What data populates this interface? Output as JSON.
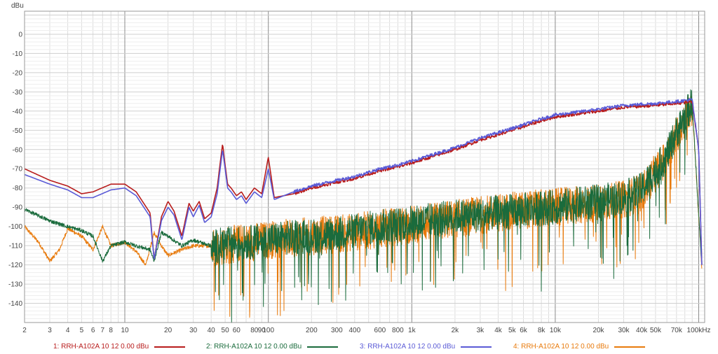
{
  "chart_data": {
    "type": "line",
    "ylabel": "dBu",
    "x_scale": "log",
    "xlim": [
      2,
      110000
    ],
    "ylim": [
      -150,
      12
    ],
    "x_ticks": [
      {
        "v": 2,
        "label": "2"
      },
      {
        "v": 3,
        "label": "3"
      },
      {
        "v": 4,
        "label": "4"
      },
      {
        "v": 5,
        "label": "5"
      },
      {
        "v": 6,
        "label": "6"
      },
      {
        "v": 7,
        "label": "7"
      },
      {
        "v": 8,
        "label": "8"
      },
      {
        "v": 10,
        "label": "10"
      },
      {
        "v": 20,
        "label": "20"
      },
      {
        "v": 30,
        "label": "30"
      },
      {
        "v": 40,
        "label": "40"
      },
      {
        "v": 50,
        "label": "50"
      },
      {
        "v": 60,
        "label": "60"
      },
      {
        "v": 80,
        "label": "80"
      },
      {
        "v": 90,
        "label": "90"
      },
      {
        "v": 100,
        "label": "100"
      },
      {
        "v": 200,
        "label": "200"
      },
      {
        "v": 300,
        "label": "300"
      },
      {
        "v": 400,
        "label": "400"
      },
      {
        "v": 600,
        "label": "600"
      },
      {
        "v": 800,
        "label": "800"
      },
      {
        "v": 1000,
        "label": "1k"
      },
      {
        "v": 2000,
        "label": "2k"
      },
      {
        "v": 3000,
        "label": "3k"
      },
      {
        "v": 4000,
        "label": "4k"
      },
      {
        "v": 5000,
        "label": "5k"
      },
      {
        "v": 6000,
        "label": "6k"
      },
      {
        "v": 8000,
        "label": "8k"
      },
      {
        "v": 10000,
        "label": "10k"
      },
      {
        "v": 20000,
        "label": "20k"
      },
      {
        "v": 30000,
        "label": "30k"
      },
      {
        "v": 40000,
        "label": "40k"
      },
      {
        "v": 50000,
        "label": "50k"
      },
      {
        "v": 70000,
        "label": "70k"
      },
      {
        "v": 100000,
        "label": "100kHz"
      }
    ],
    "y_ticks": [
      0,
      -10,
      -20,
      -30,
      -40,
      -50,
      -60,
      -70,
      -80,
      -90,
      -100,
      -110,
      -120,
      -130,
      -140
    ],
    "grid": true,
    "legend_position": "bottom",
    "series": [
      {
        "name": "1: RRH-A102A 10 12 0.00 dBu",
        "color": "#b81c1c",
        "noise": 0,
        "x": [
          2,
          3,
          4,
          5,
          6,
          8,
          10,
          12,
          15,
          16,
          18,
          20,
          22,
          25,
          28,
          30,
          33,
          36,
          40,
          44,
          48,
          50,
          52,
          55,
          60,
          65,
          70,
          80,
          90,
          100,
          110,
          150,
          200,
          300,
          400,
          600,
          800,
          1000,
          2000,
          3000,
          5000,
          8000,
          10000,
          20000,
          30000,
          50000,
          70000,
          90000,
          100000,
          105000
        ],
        "y": [
          -70,
          -76,
          -79,
          -83,
          -82,
          -78,
          -78,
          -82,
          -93,
          -117,
          -95,
          -87,
          -92,
          -105,
          -88,
          -92,
          -87,
          -96,
          -93,
          -80,
          -57,
          -68,
          -78,
          -80,
          -84,
          -82,
          -86,
          -80,
          -83,
          -64,
          -85,
          -83,
          -80,
          -77,
          -75,
          -71,
          -69,
          -67,
          -60,
          -55,
          -50,
          -45,
          -43,
          -40,
          -38,
          -37,
          -36,
          -35,
          -60,
          -120
        ]
      },
      {
        "name": "2: RRH-A102A 10 12 0.00 dBu",
        "color": "#1a6b3c",
        "noise": 18,
        "x": [
          2,
          3,
          4,
          5,
          6,
          7,
          8,
          10,
          12,
          15,
          16,
          18,
          20,
          25,
          30,
          40,
          50,
          60,
          80,
          100,
          200,
          300,
          500,
          1000,
          2000,
          3000,
          5000,
          10000,
          20000,
          30000,
          40000,
          50000,
          60000,
          70000,
          80000,
          90000,
          100000,
          105000
        ],
        "y": [
          -91,
          -97,
          -100,
          -102,
          -105,
          -118,
          -110,
          -108,
          -110,
          -112,
          -118,
          -103,
          -105,
          -110,
          -107,
          -110,
          -108,
          -108,
          -107,
          -106,
          -104,
          -103,
          -100,
          -97,
          -94,
          -93,
          -91,
          -89,
          -86,
          -84,
          -80,
          -70,
          -62,
          -50,
          -42,
          -35,
          -95,
          -120
        ]
      },
      {
        "name": "3: RRH-A102A 10 12 0.00 dBu",
        "color": "#5a5ad6",
        "noise": 0,
        "x": [
          2,
          3,
          4,
          5,
          6,
          8,
          10,
          12,
          15,
          16,
          18,
          20,
          22,
          25,
          28,
          30,
          33,
          36,
          40,
          44,
          48,
          50,
          52,
          55,
          60,
          65,
          70,
          80,
          90,
          100,
          110,
          150,
          200,
          300,
          400,
          600,
          800,
          1000,
          2000,
          3000,
          5000,
          8000,
          10000,
          20000,
          30000,
          50000,
          70000,
          90000,
          100000,
          105000
        ],
        "y": [
          -73,
          -78,
          -81,
          -85,
          -85,
          -81,
          -80,
          -84,
          -95,
          -117,
          -97,
          -90,
          -94,
          -107,
          -90,
          -95,
          -89,
          -98,
          -95,
          -83,
          -60,
          -70,
          -80,
          -82,
          -86,
          -84,
          -88,
          -82,
          -85,
          -70,
          -86,
          -82,
          -79,
          -76,
          -74,
          -70,
          -68,
          -66,
          -59,
          -54,
          -49,
          -44,
          -42,
          -39,
          -37,
          -36,
          -35,
          -34,
          -60,
          -120
        ]
      },
      {
        "name": "4: RRH-A102A 10 12 0.00 dBu",
        "color": "#e87a0c",
        "noise": 20,
        "x": [
          2,
          2.5,
          3,
          3.5,
          4,
          5,
          6,
          7,
          8,
          10,
          12,
          14,
          16,
          18,
          20,
          25,
          30,
          40,
          50,
          60,
          80,
          100,
          200,
          300,
          500,
          1000,
          2000,
          3000,
          5000,
          10000,
          20000,
          30000,
          40000,
          50000,
          60000,
          70000,
          80000,
          90000,
          100000,
          105000
        ],
        "y": [
          -100,
          -108,
          -118,
          -112,
          -101,
          -105,
          -112,
          -100,
          -110,
          -108,
          -113,
          -120,
          -103,
          -110,
          -115,
          -112,
          -110,
          -110,
          -109,
          -108,
          -107,
          -106,
          -104,
          -103,
          -101,
          -98,
          -95,
          -93,
          -91,
          -89,
          -87,
          -85,
          -81,
          -71,
          -63,
          -51,
          -43,
          -37,
          -95,
          -120
        ]
      }
    ]
  }
}
